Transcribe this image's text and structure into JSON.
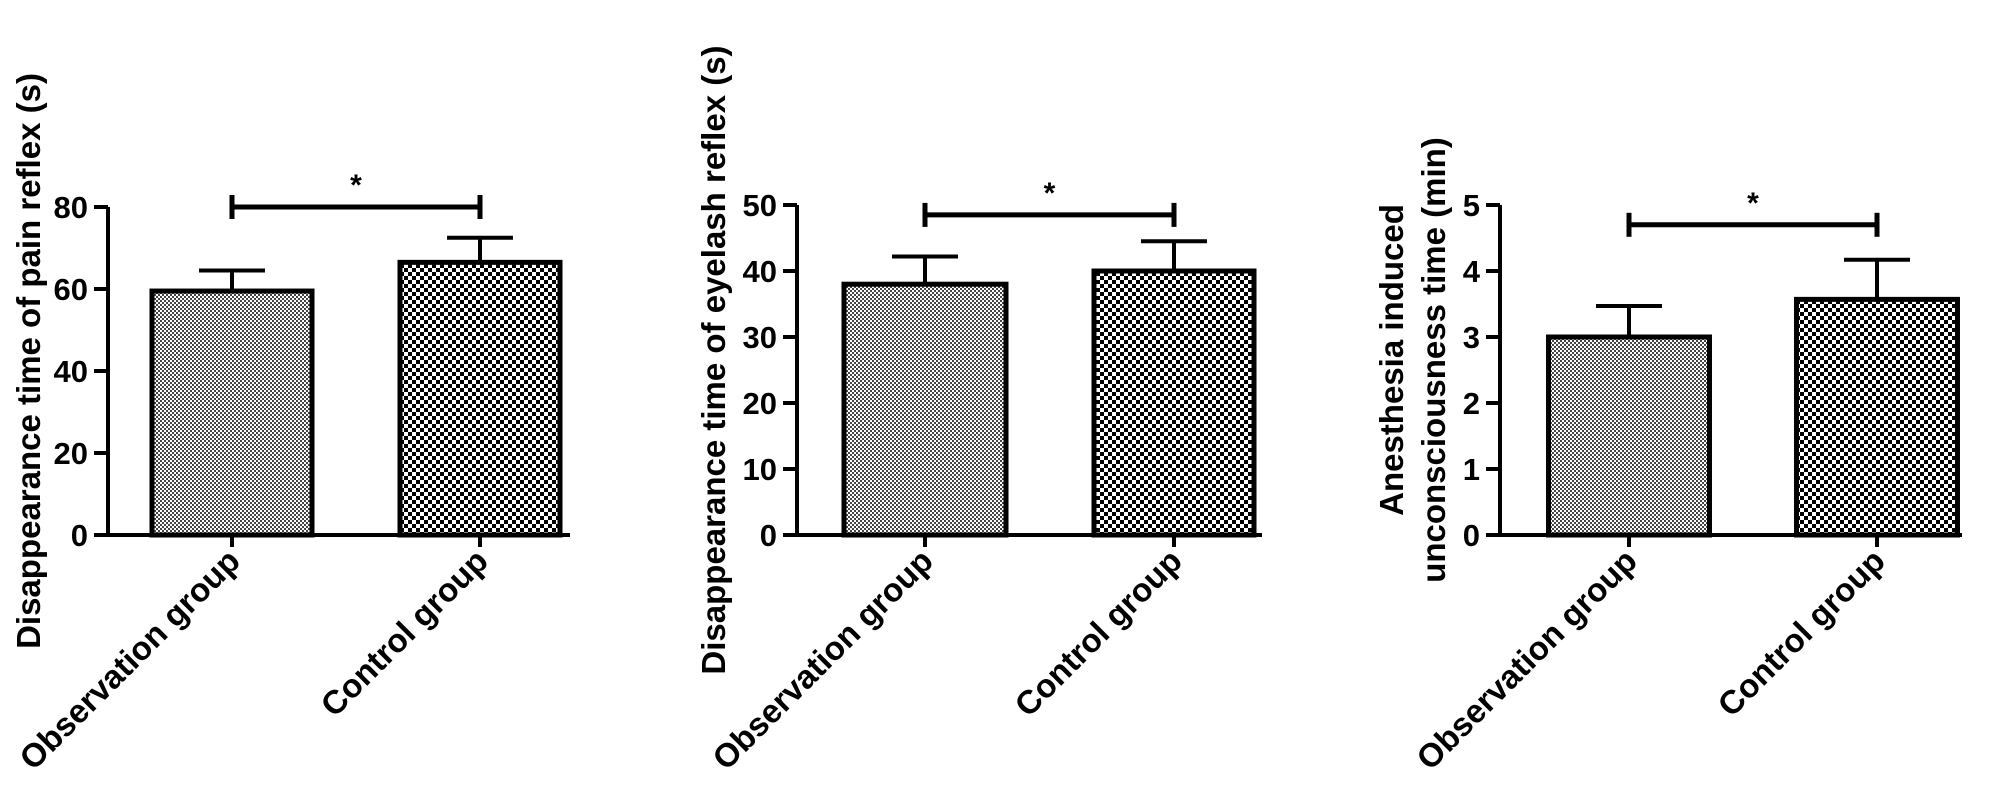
{
  "chart_data": [
    {
      "type": "bar",
      "categories": [
        "Observation group",
        "Control group"
      ],
      "values": [
        59.5,
        66.5
      ],
      "errors": [
        5,
        6
      ],
      "ylabel": "Disappearance time of pain reflex (s)",
      "ylim": [
        0,
        80
      ],
      "yticks": [
        0,
        20,
        40,
        60,
        80
      ],
      "significance": {
        "label": "*",
        "y": 80
      },
      "patterns": [
        "fine-check",
        "coarse-check"
      ]
    },
    {
      "type": "bar",
      "categories": [
        "Observation group",
        "Control group"
      ],
      "values": [
        38,
        40
      ],
      "errors": [
        4.2,
        4.5
      ],
      "ylabel": "Disappearance time of eyelash reflex (s)",
      "ylim": [
        0,
        50
      ],
      "yticks": [
        0,
        10,
        20,
        30,
        40,
        50
      ],
      "significance": {
        "label": "*",
        "y": 48.5
      },
      "patterns": [
        "fine-check",
        "coarse-check"
      ]
    },
    {
      "type": "bar",
      "categories": [
        "Observation group",
        "Control group"
      ],
      "values": [
        3.0,
        3.57
      ],
      "errors": [
        0.47,
        0.6
      ],
      "ylabel": [
        "Anesthesia induced",
        "unconsciousness time (min)"
      ],
      "ylim": [
        0,
        5
      ],
      "yticks": [
        0,
        1,
        2,
        3,
        4,
        5
      ],
      "significance": {
        "label": "*",
        "y": 4.7
      },
      "patterns": [
        "fine-check",
        "coarse-check"
      ]
    }
  ]
}
